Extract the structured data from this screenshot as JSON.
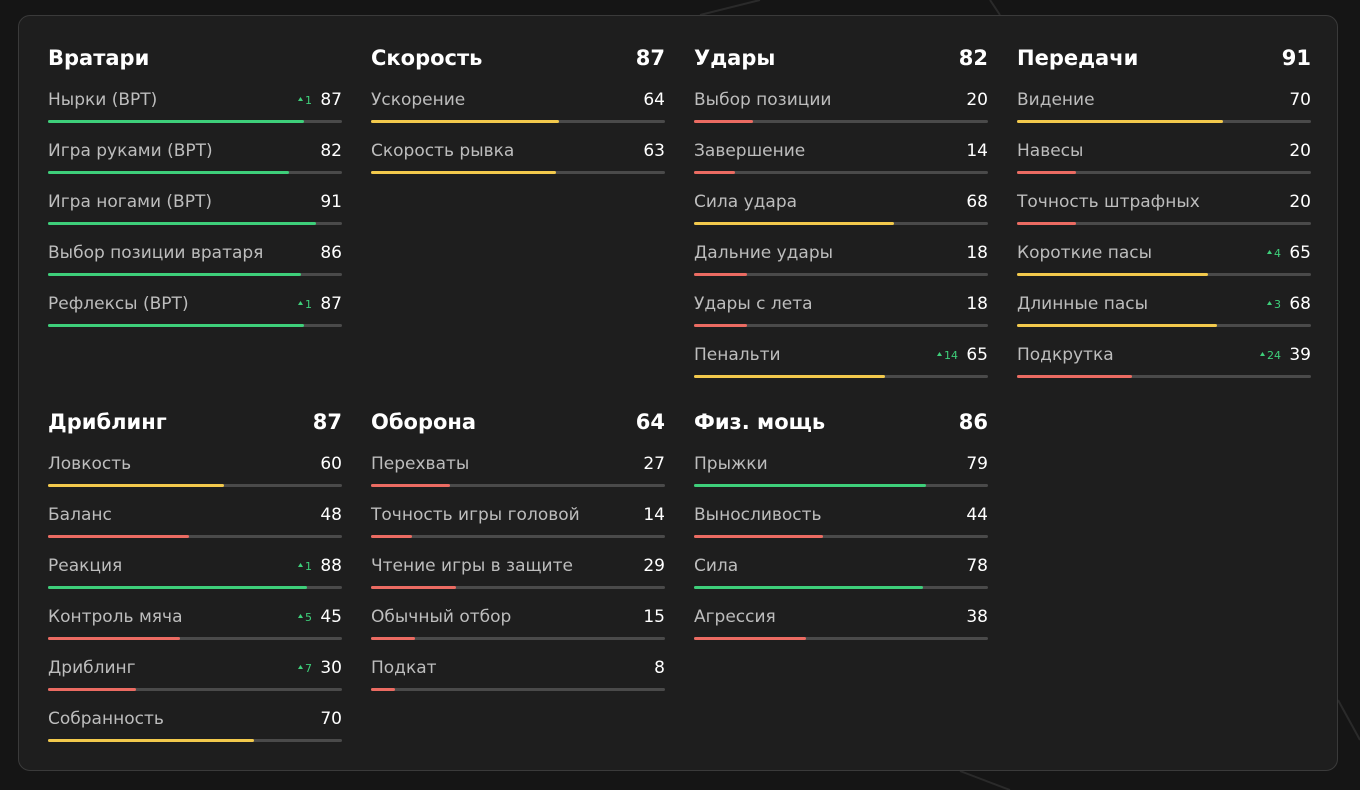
{
  "scale": [
    0,
    100
  ],
  "colors": {
    "track": "#4a4a4a"
  },
  "groups": [
    {
      "title": "Вратари",
      "stats": [
        {
          "name": "Нырки (ВРТ)",
          "value": 87,
          "delta": 1,
          "color": "#3ecf7a"
        },
        {
          "name": "Игра руками (ВРТ)",
          "value": 82,
          "color": "#3ecf7a"
        },
        {
          "name": "Игра ногами (ВРТ)",
          "value": 91,
          "color": "#3ecf7a"
        },
        {
          "name": "Выбор позиции вратаря",
          "value": 86,
          "color": "#3ecf7a"
        },
        {
          "name": "Рефлексы (ВРТ)",
          "value": 87,
          "delta": 1,
          "color": "#3ecf7a"
        }
      ]
    },
    {
      "title": "Скорость",
      "total": 87,
      "stats": [
        {
          "name": "Ускорение",
          "value": 64,
          "color": "#f2c94c"
        },
        {
          "name": "Скорость рывка",
          "value": 63,
          "color": "#f2c94c"
        }
      ]
    },
    {
      "title": "Удары",
      "total": 82,
      "stats": [
        {
          "name": "Выбор позиции",
          "value": 20,
          "color": "#eb6b62"
        },
        {
          "name": "Завершение",
          "value": 14,
          "color": "#eb6b62"
        },
        {
          "name": "Сила удара",
          "value": 68,
          "color": "#f2c94c"
        },
        {
          "name": "Дальние удары",
          "value": 18,
          "color": "#eb6b62"
        },
        {
          "name": "Удары с лета",
          "value": 18,
          "color": "#eb6b62"
        },
        {
          "name": "Пенальти",
          "value": 65,
          "delta": 14,
          "color": "#f2c94c"
        }
      ]
    },
    {
      "title": "Передачи",
      "total": 91,
      "stats": [
        {
          "name": "Видение",
          "value": 70,
          "color": "#f2c94c"
        },
        {
          "name": "Навесы",
          "value": 20,
          "color": "#eb6b62"
        },
        {
          "name": "Точность штрафных",
          "value": 20,
          "color": "#eb6b62"
        },
        {
          "name": "Короткие пасы",
          "value": 65,
          "delta": 4,
          "color": "#f2c94c"
        },
        {
          "name": "Длинные пасы",
          "value": 68,
          "delta": 3,
          "color": "#f2c94c"
        },
        {
          "name": "Подкрутка",
          "value": 39,
          "delta": 24,
          "color": "#eb6b62"
        }
      ]
    },
    {
      "title": "Дриблинг",
      "total": 87,
      "stats": [
        {
          "name": "Ловкость",
          "value": 60,
          "color": "#f2c94c"
        },
        {
          "name": "Баланс",
          "value": 48,
          "color": "#eb6b62"
        },
        {
          "name": "Реакция",
          "value": 88,
          "delta": 1,
          "color": "#3ecf7a"
        },
        {
          "name": "Контроль мяча",
          "value": 45,
          "delta": 5,
          "color": "#eb6b62"
        },
        {
          "name": "Дриблинг",
          "value": 30,
          "delta": 7,
          "color": "#eb6b62"
        },
        {
          "name": "Собранность",
          "value": 70,
          "color": "#f2c94c"
        }
      ]
    },
    {
      "title": "Оборона",
      "total": 64,
      "stats": [
        {
          "name": "Перехваты",
          "value": 27,
          "color": "#eb6b62"
        },
        {
          "name": "Точность игры головой",
          "value": 14,
          "color": "#eb6b62"
        },
        {
          "name": "Чтение игры в защите",
          "value": 29,
          "color": "#eb6b62"
        },
        {
          "name": "Обычный отбор",
          "value": 15,
          "color": "#eb6b62"
        },
        {
          "name": "Подкат",
          "value": 8,
          "color": "#eb6b62"
        }
      ]
    },
    {
      "title": "Физ. мощь",
      "total": 86,
      "stats": [
        {
          "name": "Прыжки",
          "value": 79,
          "color": "#3ecf7a"
        },
        {
          "name": "Выносливость",
          "value": 44,
          "color": "#eb6b62"
        },
        {
          "name": "Сила",
          "value": 78,
          "color": "#3ecf7a"
        },
        {
          "name": "Агрессия",
          "value": 38,
          "color": "#eb6b62"
        }
      ]
    }
  ]
}
